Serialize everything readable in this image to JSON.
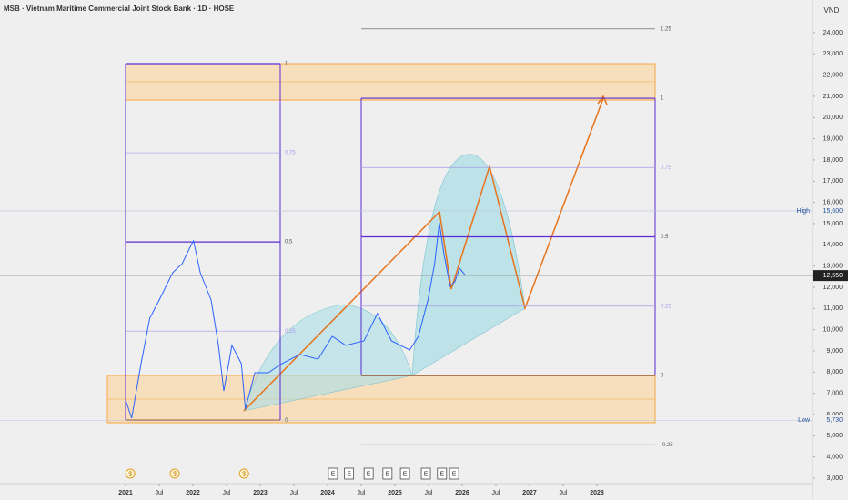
{
  "chart_data": {
    "type": "line",
    "title": "MSB · Vietnam Maritime Commercial Joint Stock Bank · 1D · HOSE",
    "currency": "VND",
    "color": "#2962ff",
    "x": [
      2021.0,
      2021.09,
      2021.23,
      2021.36,
      2021.5,
      2021.7,
      2021.84,
      2021.97,
      2022.01,
      2022.11,
      2022.27,
      2022.38,
      2022.46,
      2022.58,
      2022.72,
      2022.78,
      2022.92,
      2023.12,
      2023.32,
      2023.59,
      2023.86,
      2024.07,
      2024.27,
      2024.54,
      2024.74,
      2024.95,
      2025.22,
      2025.35,
      2025.49,
      2025.59,
      2025.66,
      2025.73,
      2025.82,
      2025.89,
      2025.96,
      2026.05
    ],
    "values": [
      6690,
      5830,
      8400,
      10540,
      11400,
      12690,
      13110,
      13970,
      14190,
      12690,
      11400,
      9260,
      7110,
      9260,
      8400,
      6260,
      7970,
      7970,
      8400,
      8830,
      8610,
      9690,
      9260,
      9470,
      10760,
      9470,
      9040,
      9690,
      11400,
      13110,
      15040,
      13540,
      12040,
      12260,
      12900,
      12550
    ],
    "xlim": [
      2019.135,
      2031.203
    ],
    "xticks": [
      2021,
      {
        "value": 2021.5,
        "label": "Jul"
      },
      2022,
      {
        "value": 2022.5,
        "label": "Jul"
      },
      2023,
      {
        "value": 2023.5,
        "label": "Jul"
      },
      2024,
      {
        "value": 2024.5,
        "label": "Jul"
      },
      2025,
      {
        "value": 2025.5,
        "label": "Jul"
      },
      2026,
      {
        "value": 2026.5,
        "label": "Jul"
      },
      2027,
      {
        "value": 2027.5,
        "label": "Jul"
      },
      2028
    ],
    "ylim": [
      2570,
      25540
    ],
    "yticks": [
      {
        "value": 3000,
        "label": "3,000"
      },
      {
        "value": 4000,
        "label": "4,000"
      },
      {
        "value": 5000,
        "label": "5,000"
      },
      {
        "value": 6000,
        "label": "6,000"
      },
      {
        "value": 7000,
        "label": "7,000"
      },
      {
        "value": 8000,
        "label": "8,000"
      },
      {
        "value": 9000,
        "label": "9,000"
      },
      {
        "value": 10000,
        "label": "10,000"
      },
      {
        "value": 11000,
        "label": "11,000"
      },
      {
        "value": 12000,
        "label": "12,000"
      },
      {
        "value": 13000,
        "label": "13,000"
      },
      {
        "value": 14000,
        "label": "14,000"
      },
      {
        "value": 15000,
        "label": "15,000"
      },
      {
        "value": 16000,
        "label": "16,000"
      },
      {
        "value": 17000,
        "label": "17,000"
      },
      {
        "value": 18000,
        "label": "18,000"
      },
      {
        "value": 19000,
        "label": "19,000"
      },
      {
        "value": 20000,
        "label": "20,000"
      },
      {
        "value": 21000,
        "label": "21,000"
      },
      {
        "value": 22000,
        "label": "22,000"
      },
      {
        "value": 23000,
        "label": "23,000"
      },
      {
        "value": 24000,
        "label": "24,000"
      }
    ],
    "price_labels": [
      {
        "value": 12550,
        "label": "12,550"
      },
      {
        "value": 15600,
        "label": "15,600",
        "tag": "High"
      },
      {
        "value": 5730,
        "label": "5,730",
        "tag": "Low"
      }
    ],
    "fibs": [
      {
        "low": 5730,
        "high": 22540,
        "levels": [
          1,
          0.75,
          0.5,
          0.25,
          0
        ]
      },
      {
        "low": 7840,
        "high": 20910,
        "levels": [
          1.25,
          1,
          0.75,
          0.5,
          0.25,
          0,
          -0.25
        ]
      }
    ],
    "dividends": {
      "label": "$",
      "x": [
        2021.07,
        2021.73,
        2022.76
      ]
    },
    "earnings": {
      "label": "E",
      "x": [
        2024.08,
        2024.32,
        2024.61,
        2024.89,
        2025.15,
        2025.46,
        2025.7,
        2025.88
      ]
    }
  }
}
